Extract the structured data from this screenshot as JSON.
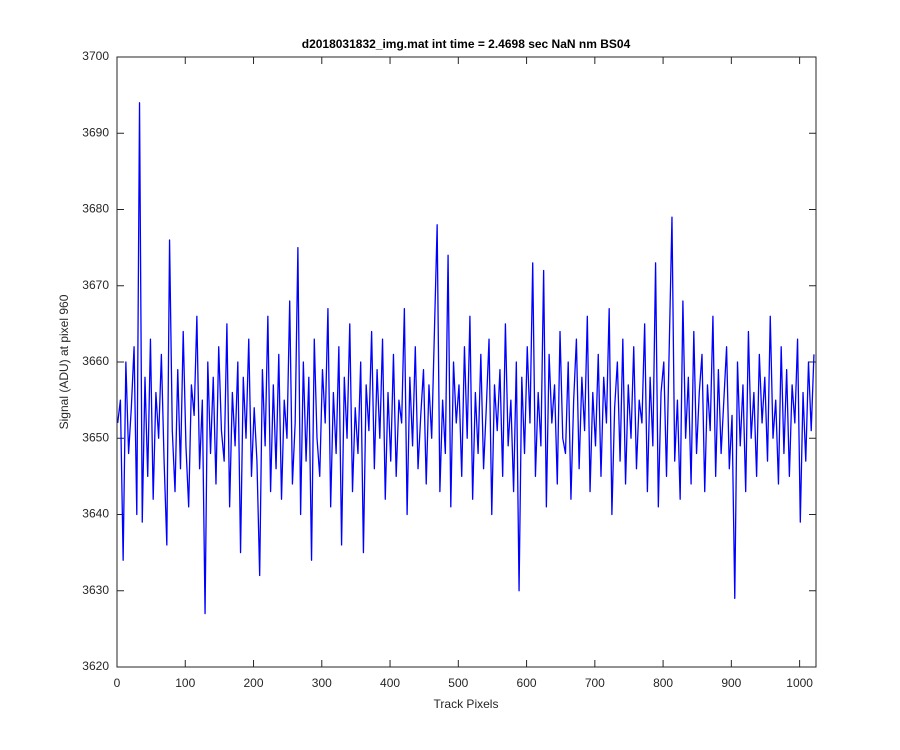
{
  "chart_data": {
    "type": "line",
    "title": "d2018031832_img.mat int time = 2.4698 sec  NaN nm BS04",
    "xlabel": "Track Pixels",
    "ylabel": "Signal (ADU) at pixel 960",
    "color": "#0000ff",
    "xlim": [
      0,
      1024
    ],
    "ylim": [
      3620,
      3700
    ],
    "xticks": [
      0,
      100,
      200,
      300,
      400,
      500,
      600,
      700,
      800,
      900,
      1000
    ],
    "yticks": [
      3620,
      3630,
      3640,
      3650,
      3660,
      3670,
      3680,
      3690,
      3700
    ],
    "grid": false,
    "x": [
      1,
      5,
      9,
      13,
      17,
      21,
      25,
      29,
      33,
      37,
      41,
      45,
      49,
      53,
      57,
      61,
      65,
      69,
      73,
      77,
      81,
      85,
      89,
      93,
      97,
      101,
      105,
      109,
      113,
      117,
      121,
      125,
      129,
      133,
      137,
      141,
      145,
      149,
      153,
      157,
      161,
      165,
      169,
      173,
      177,
      181,
      185,
      189,
      193,
      197,
      201,
      205,
      209,
      213,
      217,
      221,
      225,
      229,
      233,
      237,
      241,
      245,
      249,
      253,
      257,
      261,
      265,
      269,
      273,
      277,
      281,
      285,
      289,
      293,
      297,
      301,
      305,
      309,
      313,
      317,
      321,
      325,
      329,
      333,
      337,
      341,
      345,
      349,
      353,
      357,
      361,
      365,
      369,
      373,
      377,
      381,
      385,
      389,
      393,
      397,
      401,
      405,
      409,
      413,
      417,
      421,
      425,
      429,
      433,
      437,
      441,
      445,
      449,
      453,
      457,
      461,
      465,
      469,
      473,
      477,
      481,
      485,
      489,
      493,
      497,
      501,
      505,
      509,
      513,
      517,
      521,
      525,
      529,
      533,
      537,
      541,
      545,
      549,
      553,
      557,
      561,
      565,
      569,
      573,
      577,
      581,
      585,
      589,
      593,
      597,
      601,
      605,
      609,
      613,
      617,
      621,
      625,
      629,
      633,
      637,
      641,
      645,
      649,
      653,
      657,
      661,
      665,
      669,
      673,
      677,
      681,
      685,
      689,
      693,
      697,
      701,
      705,
      709,
      713,
      717,
      721,
      725,
      729,
      733,
      737,
      741,
      745,
      749,
      753,
      757,
      761,
      765,
      769,
      773,
      777,
      781,
      785,
      789,
      793,
      797,
      801,
      805,
      809,
      813,
      817,
      821,
      825,
      829,
      833,
      837,
      841,
      845,
      849,
      853,
      857,
      861,
      865,
      869,
      873,
      877,
      881,
      885,
      889,
      893,
      897,
      901,
      905,
      909,
      913,
      917,
      921,
      925,
      929,
      933,
      937,
      941,
      945,
      949,
      953,
      957,
      961,
      965,
      969,
      973,
      977,
      981,
      985,
      989,
      993,
      997,
      1001,
      1005,
      1009,
      1013,
      1017,
      1021
    ],
    "values": [
      3652,
      3655,
      3634,
      3660,
      3648,
      3654,
      3662,
      3640,
      3694,
      3639,
      3658,
      3645,
      3663,
      3642,
      3656,
      3650,
      3661,
      3647,
      3636,
      3676,
      3651,
      3643,
      3659,
      3646,
      3664,
      3649,
      3641,
      3657,
      3653,
      3666,
      3646,
      3655,
      3627,
      3660,
      3648,
      3658,
      3644,
      3662,
      3651,
      3647,
      3665,
      3641,
      3656,
      3649,
      3660,
      3635,
      3658,
      3650,
      3663,
      3645,
      3654,
      3647,
      3632,
      3659,
      3649,
      3666,
      3643,
      3657,
      3646,
      3661,
      3642,
      3655,
      3650,
      3668,
      3644,
      3652,
      3675,
      3640,
      3660,
      3647,
      3658,
      3634,
      3663,
      3650,
      3645,
      3659,
      3652,
      3667,
      3641,
      3656,
      3648,
      3662,
      3636,
      3658,
      3650,
      3665,
      3643,
      3654,
      3648,
      3660,
      3635,
      3657,
      3651,
      3664,
      3646,
      3659,
      3650,
      3663,
      3642,
      3656,
      3647,
      3661,
      3645,
      3655,
      3652,
      3667,
      3640,
      3658,
      3649,
      3662,
      3646,
      3653,
      3659,
      3644,
      3657,
      3650,
      3664,
      3678,
      3643,
      3655,
      3648,
      3674,
      3641,
      3660,
      3652,
      3657,
      3645,
      3662,
      3650,
      3666,
      3642,
      3656,
      3648,
      3661,
      3646,
      3654,
      3663,
      3640,
      3657,
      3651,
      3659,
      3645,
      3665,
      3649,
      3655,
      3643,
      3660,
      3630,
      3658,
      3648,
      3662,
      3652,
      3673,
      3645,
      3656,
      3649,
      3672,
      3641,
      3661,
      3652,
      3657,
      3644,
      3664,
      3650,
      3648,
      3660,
      3642,
      3655,
      3663,
      3646,
      3658,
      3651,
      3666,
      3643,
      3656,
      3649,
      3661,
      3645,
      3658,
      3652,
      3667,
      3640,
      3654,
      3660,
      3647,
      3663,
      3644,
      3657,
      3650,
      3662,
      3646,
      3655,
      3652,
      3665,
      3643,
      3658,
      3649,
      3673,
      3641,
      3656,
      3660,
      3645,
      3662,
      3679,
      3647,
      3655,
      3642,
      3668,
      3650,
      3658,
      3644,
      3664,
      3648,
      3656,
      3661,
      3643,
      3657,
      3651,
      3666,
      3645,
      3659,
      3648,
      3655,
      3662,
      3646,
      3653,
      3629,
      3660,
      3649,
      3657,
      3643,
      3664,
      3650,
      3656,
      3645,
      3661,
      3652,
      3658,
      3647,
      3666,
      3650,
      3655,
      3644,
      3662,
      3648,
      3659,
      3645,
      3657,
      3652,
      3663,
      3639,
      3656,
      3647,
      3660,
      3651,
      3661
    ]
  }
}
